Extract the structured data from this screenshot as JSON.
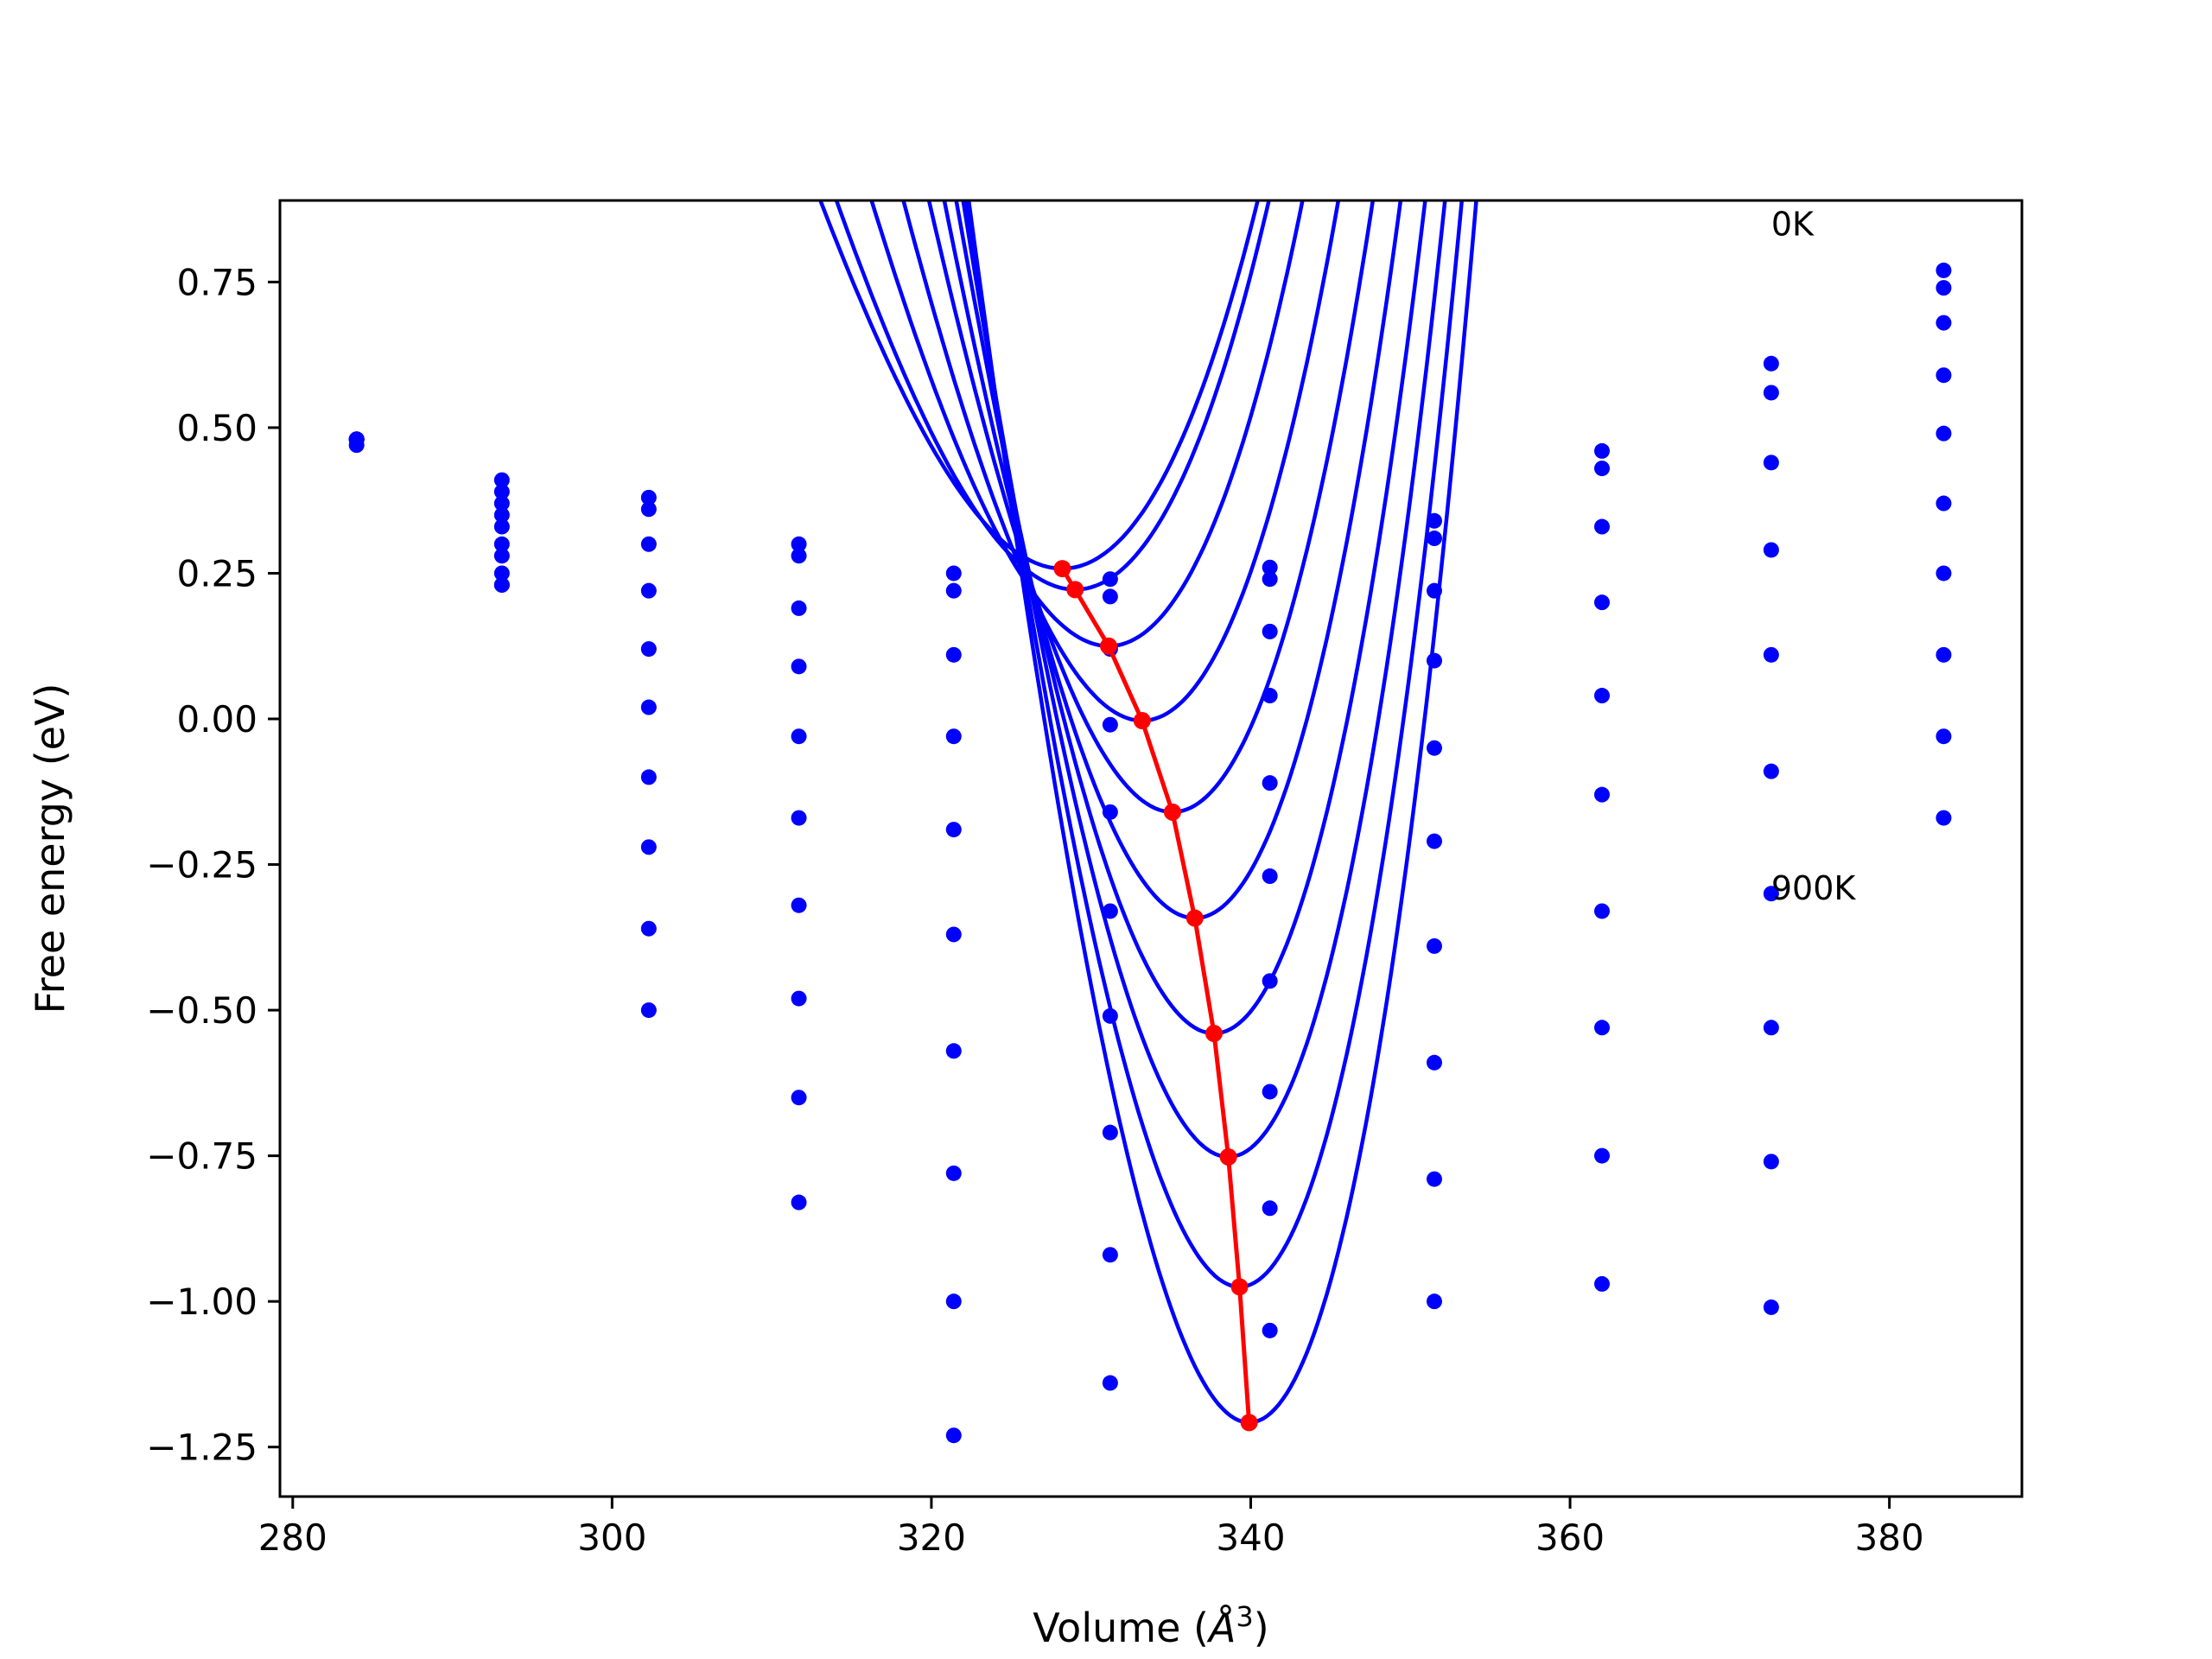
{
  "chart_data": {
    "type": "scatter",
    "title": "",
    "xlabel": "Volume (",
    "xlabel_symbol": "Å",
    "xlabel_exponent": "3",
    "xlabel_suffix": ")",
    "ylabel": "Free energy (eV)",
    "xlim": [
      279.2,
      388.3
    ],
    "ylim": [
      -1.335,
      0.89
    ],
    "x_ticks": [
      280,
      300,
      320,
      340,
      360,
      380
    ],
    "x_tick_labels": [
      "280",
      "300",
      "320",
      "340",
      "360",
      "380"
    ],
    "y_ticks": [
      0.75,
      0.5,
      0.25,
      0.0,
      -0.25,
      -0.5,
      -0.75,
      -1.0,
      -1.25
    ],
    "y_tick_labels": [
      "0.75",
      "0.50",
      "0.25",
      "0.00",
      "−0.25",
      "−0.50",
      "−0.75",
      "−1.00",
      "−1.25"
    ],
    "grid": false,
    "colors": {
      "fits": "#0000ff",
      "points": "#0000ff",
      "minima": "#ff0000",
      "frame": "#000000"
    },
    "annotations": [
      {
        "text": "0K",
        "x": 372.6,
        "y": 0.83
      },
      {
        "text": "900K",
        "x": 372.6,
        "y": -0.31
      }
    ],
    "volumes": [
      284.0,
      293.1,
      302.3,
      311.7,
      321.4,
      331.2,
      341.2,
      351.5,
      362.0,
      372.6,
      383.4
    ],
    "series": [
      {
        "label": "0K",
        "points": [
          0.48,
          0.41,
          0.38,
          0.3,
          0.25,
          0.24,
          0.26,
          0.34,
          0.46,
          0.61,
          0.77
        ],
        "fit": {
          "v0": 328.2,
          "f0": 0.258,
          "k": 5.35e-05
        }
      },
      {
        "points": [
          0.48,
          0.39,
          0.36,
          0.28,
          0.22,
          0.21,
          0.24,
          0.31,
          0.43,
          0.56,
          0.74
        ],
        "fit": {
          "v0": 329.0,
          "f0": 0.222,
          "k": 5.7e-05
        }
      },
      {
        "points": [
          0.48,
          0.37,
          0.3,
          0.19,
          0.11,
          0.12,
          0.15,
          0.22,
          0.33,
          0.44,
          0.68
        ],
        "fit": {
          "v0": 331.1,
          "f0": 0.125,
          "k": 6.35e-05
        }
      },
      {
        "points": [
          0.48,
          0.35,
          0.22,
          0.09,
          -0.03,
          -0.01,
          0.04,
          0.1,
          0.2,
          0.29,
          0.59
        ],
        "fit": {
          "v0": 333.2,
          "f0": -0.003,
          "k": 7.05e-05
        }
      },
      {
        "points": [
          0.48,
          0.33,
          0.12,
          -0.03,
          -0.19,
          -0.16,
          -0.11,
          -0.05,
          0.04,
          0.11,
          0.49
        ],
        "fit": {
          "v0": 335.1,
          "f0": -0.16,
          "k": 7.75e-05
        }
      },
      {
        "points": [
          0.48,
          0.3,
          0.02,
          -0.17,
          -0.37,
          -0.33,
          -0.27,
          -0.21,
          -0.13,
          -0.09,
          0.37
        ],
        "fit": {
          "v0": 336.5,
          "f0": -0.342,
          "k": 8.45e-05
        }
      },
      {
        "points": [
          0.48,
          0.28,
          -0.1,
          -0.32,
          -0.57,
          -0.51,
          -0.45,
          -0.39,
          -0.33,
          -0.3,
          0.25
        ],
        "fit": {
          "v0": 337.7,
          "f0": -0.54,
          "k": 9.15e-05
        }
      },
      {
        "points": [
          0.48,
          0.25,
          -0.22,
          -0.48,
          -0.78,
          -0.71,
          -0.64,
          -0.59,
          -0.53,
          -0.53,
          0.11
        ],
        "fit": {
          "v0": 338.6,
          "f0": -0.752,
          "k": 9.85e-05
        }
      },
      {
        "points": [
          0.48,
          0.23,
          -0.36,
          -0.65,
          -1.0,
          -0.92,
          -0.84,
          -0.79,
          -0.75,
          -0.76,
          -0.03
        ],
        "fit": {
          "v0": 339.3,
          "f0": -0.975,
          "k": 0.000105
        }
      },
      {
        "label": "900K",
        "points": [
          0.47,
          0.23,
          -0.5,
          -0.83,
          -1.23,
          -1.14,
          -1.05,
          -1.0,
          -0.97,
          -1.01,
          -0.17
        ],
        "fit": {
          "v0": 339.9,
          "f0": -1.208,
          "k": 0.000112
        }
      }
    ],
    "minima_line": {
      "x": [
        328.2,
        329.0,
        331.1,
        333.2,
        335.1,
        336.5,
        337.7,
        338.6,
        339.3,
        339.9
      ],
      "y": [
        0.258,
        0.222,
        0.125,
        -0.003,
        -0.16,
        -0.342,
        -0.54,
        -0.752,
        -0.975,
        -1.208
      ]
    }
  }
}
